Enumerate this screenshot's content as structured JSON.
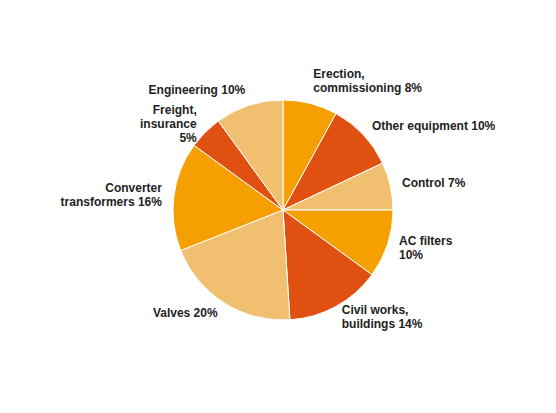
{
  "chart_data": {
    "type": "pie",
    "categories": [
      "Erection,\ncommissioning 8%",
      "Other equipment 10%",
      "Control 7%",
      "AC filters\n10%",
      "Civil works,\nbuildings 14%",
      "Valves 20%",
      "Converter\ntransformers 16%",
      "Freight,\ninsurance\n5%",
      "Engineering 10%"
    ],
    "values": [
      8,
      10,
      7,
      10,
      14,
      20,
      16,
      5,
      10
    ],
    "colors": [
      "#F5A000",
      "#E05010",
      "#F0C070",
      "#F5A000",
      "#E05010",
      "#F0C070",
      "#F5A000",
      "#E05010",
      "#F0C070"
    ]
  }
}
